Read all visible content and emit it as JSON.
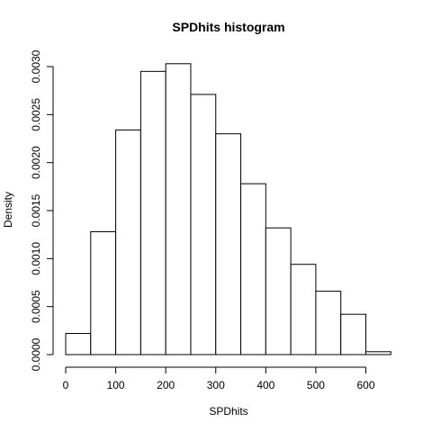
{
  "chart_data": {
    "type": "bar",
    "title": "SPDhits  histogram",
    "xlabel": "SPDhits",
    "ylabel": "Density",
    "bin_edges": [
      0,
      50,
      100,
      150,
      200,
      250,
      300,
      350,
      400,
      450,
      500,
      550,
      600,
      650
    ],
    "values": [
      0.00022,
      0.00128,
      0.00234,
      0.00295,
      0.00303,
      0.00271,
      0.0023,
      0.00178,
      0.00132,
      0.00094,
      0.00066,
      0.00042,
      3e-05
    ],
    "xlim": [
      0,
      650
    ],
    "ylim": [
      0,
      0.003
    ],
    "x_ticks": [
      0,
      100,
      200,
      300,
      400,
      500,
      600
    ],
    "x_tick_labels": [
      "0",
      "100",
      "200",
      "300",
      "400",
      "500",
      "600"
    ],
    "y_ticks": [
      0,
      0.0005,
      0.001,
      0.0015,
      0.002,
      0.0025,
      0.003
    ],
    "y_tick_labels": [
      "0.0000",
      "0.0005",
      "0.0010",
      "0.0015",
      "0.0020",
      "0.0025",
      "0.0030"
    ],
    "grid": false,
    "legend": "none",
    "colors": {
      "bar_fill": "#ffffff",
      "bar_stroke": "#000000"
    }
  }
}
